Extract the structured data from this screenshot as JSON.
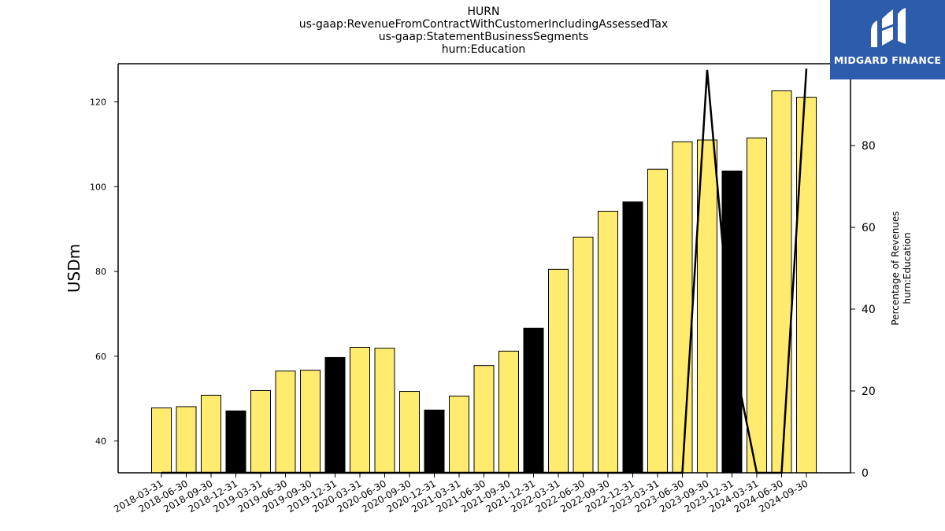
{
  "header": {
    "title_lines": [
      "HURN",
      "us-gaap:RevenueFromContractWithCustomerIncludingAssessedTax",
      "us-gaap:StatementBusinessSegments",
      "hurn:Education"
    ]
  },
  "logo": {
    "text": "MIDGARD FINANCE",
    "background": "#2e5cad"
  },
  "chart_data": {
    "type": "bar",
    "categories": [
      "2018-03-31",
      "2018-06-30",
      "2018-09-30",
      "2018-12-31",
      "2019-03-31",
      "2019-06-30",
      "2019-09-30",
      "2019-12-31",
      "2020-03-31",
      "2020-06-30",
      "2020-09-30",
      "2020-12-31",
      "2021-03-31",
      "2021-06-30",
      "2021-09-30",
      "2021-12-31",
      "2022-03-31",
      "2022-06-30",
      "2022-09-30",
      "2022-12-31",
      "2023-03-31",
      "2023-06-30",
      "2023-09-30",
      "2023-12-31",
      "2024-03-31",
      "2024-06-30",
      "2024-09-30"
    ],
    "values": [
      47.8,
      48.1,
      50.8,
      47.1,
      51.9,
      56.5,
      56.7,
      59.7,
      62.1,
      61.9,
      51.7,
      47.3,
      50.6,
      57.8,
      61.2,
      66.6,
      80.5,
      88.1,
      94.2,
      96.4,
      104.1,
      110.6,
      111.0,
      103.7,
      111.5,
      122.6,
      121.1
    ],
    "bar_colors": [
      "#ffec6e",
      "#ffec6e",
      "#ffec6e",
      "#000000",
      "#ffec6e",
      "#ffec6e",
      "#ffec6e",
      "#000000",
      "#ffec6e",
      "#ffec6e",
      "#ffec6e",
      "#000000",
      "#ffec6e",
      "#ffec6e",
      "#ffec6e",
      "#000000",
      "#ffec6e",
      "#ffec6e",
      "#ffec6e",
      "#000000",
      "#ffec6e",
      "#ffec6e",
      "#ffec6e",
      "#000000",
      "#ffec6e",
      "#ffec6e",
      "#ffec6e"
    ],
    "ylabel": "USDm",
    "ylim": [
      32.5,
      129
    ],
    "yticks": [
      40,
      60,
      80,
      100,
      120
    ],
    "secondary_axis": {
      "label_lines": [
        "Percentage of Revenues",
        "hurn:Education"
      ],
      "ylim": [
        0,
        100
      ],
      "yticks": [
        0,
        20,
        40,
        60,
        80,
        100
      ],
      "line_values": [
        0,
        0,
        0,
        0,
        0,
        0,
        0,
        0,
        0,
        0,
        0,
        0,
        0,
        0,
        0,
        0,
        0,
        0,
        0,
        0,
        0,
        0,
        98.5,
        30,
        0,
        0,
        98.8
      ],
      "line_color": "#000000"
    },
    "grid": false,
    "legend": "none"
  }
}
